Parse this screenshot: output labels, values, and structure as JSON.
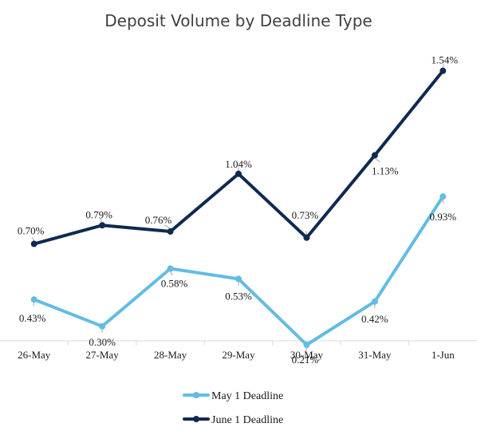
{
  "chart_data": {
    "type": "line",
    "title": "Deposit Volume by Deadline Type",
    "categories": [
      "26-May",
      "27-May",
      "28-May",
      "29-May",
      "30-May",
      "31-May",
      "1-Jun"
    ],
    "series": [
      {
        "name": "May 1 Deadline",
        "color": "#62bce4",
        "values": [
          0.43,
          0.3,
          0.58,
          0.53,
          0.21,
          0.42,
          0.93
        ],
        "labels": [
          "0.43%",
          "0.30%",
          "0.58%",
          "0.53%",
          "0.21%",
          "0.42%",
          "0.93%"
        ]
      },
      {
        "name": "June 1 Deadline",
        "color": "#0e2a52",
        "values": [
          0.7,
          0.79,
          0.76,
          1.04,
          0.73,
          1.13,
          1.54
        ],
        "labels": [
          "0.70%",
          "0.79%",
          "0.76%",
          "1.04%",
          "0.73%",
          "1.13%",
          "1.54%"
        ]
      }
    ],
    "grid": false,
    "legend_position": "bottom"
  }
}
